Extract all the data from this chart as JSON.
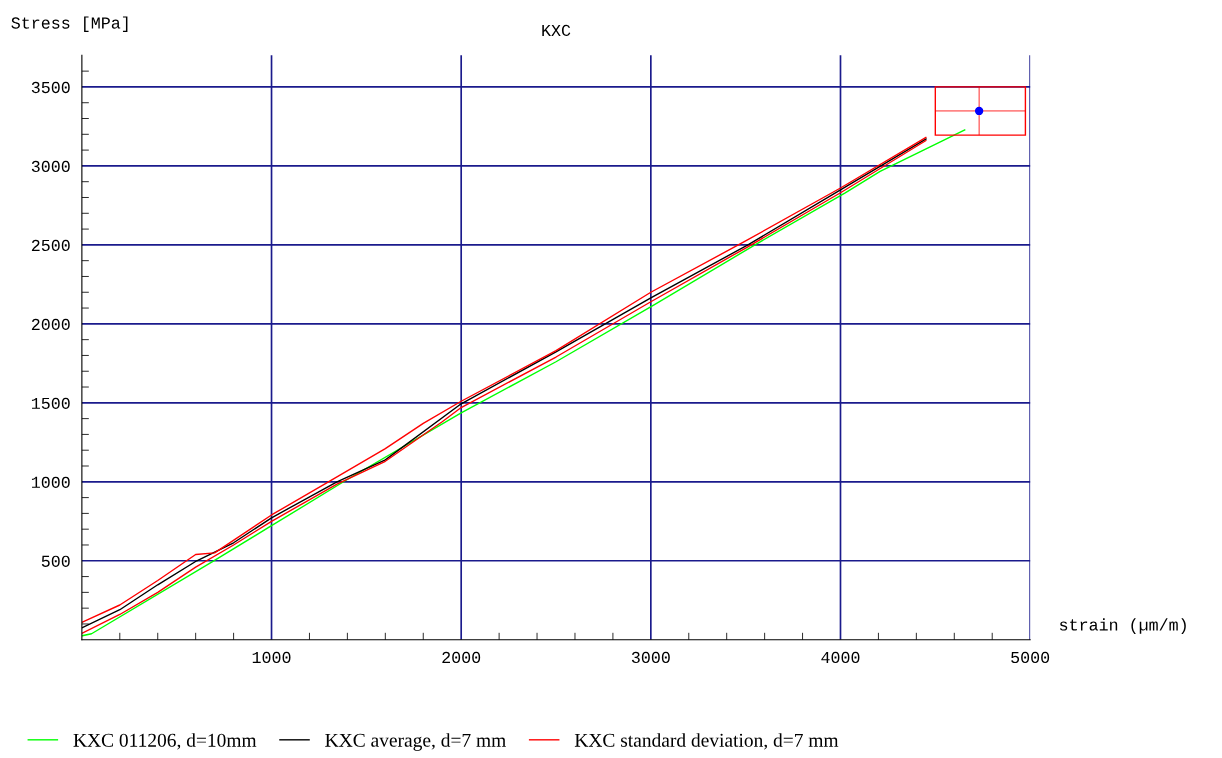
{
  "chart_data": {
    "type": "line",
    "title": "KXC",
    "xlabel": "strain (µm/m)",
    "ylabel": "Stress [MPa]",
    "xlim": [
      0,
      5000
    ],
    "ylim": [
      0,
      3700
    ],
    "xticks": [
      {
        "value": 200,
        "label": null
      },
      {
        "value": 400,
        "label": null
      },
      {
        "value": 600,
        "label": null
      },
      {
        "value": 800,
        "label": null
      },
      1000,
      {
        "value": 1200,
        "label": null
      },
      {
        "value": 1400,
        "label": null
      },
      {
        "value": 1600,
        "label": null
      },
      {
        "value": 1800,
        "label": null
      },
      2000,
      {
        "value": 2200,
        "label": null
      },
      {
        "value": 2400,
        "label": null
      },
      {
        "value": 2600,
        "label": null
      },
      {
        "value": 2800,
        "label": null
      },
      3000,
      {
        "value": 3200,
        "label": null
      },
      {
        "value": 3400,
        "label": null
      },
      {
        "value": 3600,
        "label": null
      },
      {
        "value": 3800,
        "label": null
      },
      4000,
      {
        "value": 4200,
        "label": null
      },
      {
        "value": 4400,
        "label": null
      },
      {
        "value": 4600,
        "label": null
      },
      {
        "value": 4800,
        "label": null
      },
      5000
    ],
    "yticks": [
      {
        "value": 100,
        "label": null
      },
      {
        "value": 200,
        "label": null
      },
      {
        "value": 300,
        "label": null
      },
      {
        "value": 400,
        "label": null
      },
      500,
      {
        "value": 600,
        "label": null
      },
      {
        "value": 700,
        "label": null
      },
      {
        "value": 800,
        "label": null
      },
      {
        "value": 900,
        "label": null
      },
      1000,
      {
        "value": 1100,
        "label": null
      },
      {
        "value": 1200,
        "label": null
      },
      {
        "value": 1300,
        "label": null
      },
      {
        "value": 1400,
        "label": null
      },
      1500,
      {
        "value": 1600,
        "label": null
      },
      {
        "value": 1700,
        "label": null
      },
      {
        "value": 1800,
        "label": null
      },
      {
        "value": 1900,
        "label": null
      },
      2000,
      {
        "value": 2100,
        "label": null
      },
      {
        "value": 2200,
        "label": null
      },
      {
        "value": 2300,
        "label": null
      },
      {
        "value": 2400,
        "label": null
      },
      2500,
      {
        "value": 2600,
        "label": null
      },
      {
        "value": 2700,
        "label": null
      },
      {
        "value": 2800,
        "label": null
      },
      {
        "value": 2900,
        "label": null
      },
      3000,
      {
        "value": 3100,
        "label": null
      },
      {
        "value": 3200,
        "label": null
      },
      {
        "value": 3300,
        "label": null
      },
      {
        "value": 3400,
        "label": null
      },
      3500,
      {
        "value": 3600,
        "label": null
      }
    ],
    "grid": true,
    "legend": "bottom",
    "marker": "none",
    "line_style": "solid",
    "series": [
      {
        "name": "KXC 011206, d=10mm",
        "color": "#00ff00",
        "x": [
          0,
          51,
          691,
          1000,
          1397,
          2000,
          2500,
          3017,
          3549,
          4025,
          4209,
          4655
        ],
        "values": [
          25,
          38,
          496,
          722,
          1013,
          1437,
          1760,
          2120,
          2500,
          2829,
          2965,
          3228
        ]
      },
      {
        "name": "KXC average, d=7 mm",
        "color": "#000000",
        "x": [
          0,
          200,
          400,
          606,
          800,
          1000,
          1345,
          1600,
          2000,
          2500,
          3000,
          3512,
          4000,
          4451
        ],
        "values": [
          75,
          190,
          348,
          500,
          614,
          772,
          1000,
          1139,
          1494,
          1823,
          2165,
          2500,
          2848,
          3171
        ]
      },
      {
        "name": "KXC standard deviation, d=7 mm",
        "color": "#ff0000",
        "x": [
          0,
          200,
          400,
          600,
          700,
          1000,
          1300,
          1600,
          1800,
          2000,
          2500,
          3000,
          3500,
          4000,
          4450
        ],
        "values": [
          110,
          220,
          375,
          540,
          550,
          790,
          1000,
          1210,
          1370,
          1510,
          1830,
          2200,
          2525,
          2860,
          3180
        ]
      },
      {
        "color": "#ff0000",
        "x": [
          0,
          200,
          400,
          600,
          800,
          1000,
          1345,
          1600,
          1900,
          2000,
          2500,
          3000,
          3500,
          4000,
          4450
        ],
        "values": [
          40,
          160,
          300,
          460,
          600,
          750,
          985,
          1130,
          1380,
          1470,
          1790,
          2140,
          2480,
          2830,
          3160
        ]
      },
      {
        "type": "scatter",
        "color": "#0000ff",
        "marker": "circle",
        "x": [
          4731
        ],
        "values": [
          3348
        ],
        "xerrors": [
          [
            4500,
            4975
          ]
        ],
        "errors": [
          [
            3195,
            3500
          ]
        ]
      }
    ]
  }
}
